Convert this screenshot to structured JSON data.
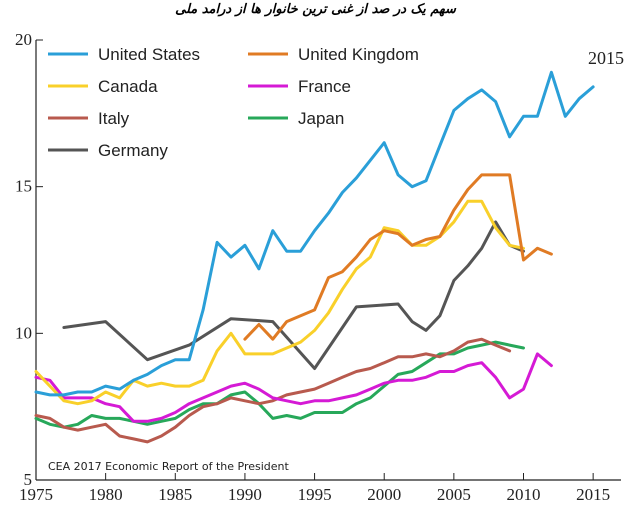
{
  "chart_data": {
    "type": "line",
    "title": "سهم یک در صد از غنی ترین خانوار ها از درامد ملی",
    "source": "CEA 2017 Economic Report of the President",
    "annotation": "2015",
    "xlabel": "",
    "ylabel": "",
    "xlim": [
      1975,
      2017
    ],
    "ylim": [
      5,
      20
    ],
    "xticks": [
      1975,
      1980,
      1985,
      1990,
      1995,
      2000,
      2005,
      2010,
      2015
    ],
    "yticks": [
      5,
      10,
      15,
      20
    ],
    "grid": false,
    "legend_position": "top-left",
    "series": [
      {
        "name": "United States",
        "color": "#2a9fd8",
        "x": [
          1975,
          1976,
          1977,
          1978,
          1979,
          1980,
          1981,
          1982,
          1983,
          1984,
          1985,
          1986,
          1987,
          1988,
          1989,
          1990,
          1991,
          1992,
          1993,
          1994,
          1995,
          1996,
          1997,
          1998,
          1999,
          2000,
          2001,
          2002,
          2003,
          2004,
          2005,
          2006,
          2007,
          2008,
          2009,
          2010,
          2011,
          2012,
          2013,
          2014,
          2015
        ],
        "y": [
          8.0,
          7.9,
          7.9,
          8.0,
          8.0,
          8.2,
          8.1,
          8.4,
          8.6,
          8.9,
          9.1,
          9.1,
          10.8,
          13.1,
          12.6,
          13.0,
          12.2,
          13.5,
          12.8,
          12.8,
          13.5,
          14.1,
          14.8,
          15.3,
          15.9,
          16.5,
          15.4,
          15.0,
          15.2,
          16.4,
          17.6,
          18.0,
          18.3,
          17.9,
          16.7,
          17.4,
          17.4,
          18.9,
          17.4,
          18.0,
          18.4
        ]
      },
      {
        "name": "United Kingdom",
        "color": "#e07b24",
        "x": [
          1990,
          1991,
          1992,
          1993,
          1994,
          1995,
          1996,
          1997,
          1998,
          1999,
          2000,
          2001,
          2002,
          2003,
          2004,
          2005,
          2006,
          2007,
          2008,
          2009,
          2010,
          2011,
          2012
        ],
        "y": [
          9.8,
          10.3,
          9.8,
          10.4,
          10.6,
          10.8,
          11.9,
          12.1,
          12.6,
          13.2,
          13.5,
          13.4,
          13.0,
          13.2,
          13.3,
          14.2,
          14.9,
          15.4,
          15.4,
          15.4,
          12.5,
          12.9,
          12.7
        ]
      },
      {
        "name": "Canada",
        "color": "#f9d02a",
        "x": [
          1975,
          1976,
          1977,
          1978,
          1979,
          1980,
          1981,
          1982,
          1983,
          1984,
          1985,
          1986,
          1987,
          1988,
          1989,
          1990,
          1991,
          1992,
          1993,
          1994,
          1995,
          1996,
          1997,
          1998,
          1999,
          2000,
          2001,
          2002,
          2003,
          2004,
          2005,
          2006,
          2007,
          2008,
          2009,
          2010
        ],
        "y": [
          8.7,
          8.2,
          7.7,
          7.6,
          7.7,
          8.0,
          7.8,
          8.4,
          8.2,
          8.3,
          8.2,
          8.2,
          8.4,
          9.4,
          10.0,
          9.3,
          9.3,
          9.3,
          9.5,
          9.7,
          10.1,
          10.7,
          11.5,
          12.2,
          12.6,
          13.6,
          13.5,
          13.0,
          13.0,
          13.3,
          13.8,
          14.5,
          14.5,
          13.6,
          13.0,
          12.9
        ]
      },
      {
        "name": "France",
        "color": "#d51ad5",
        "x": [
          1975,
          1976,
          1977,
          1978,
          1979,
          1980,
          1981,
          1982,
          1983,
          1984,
          1985,
          1986,
          1987,
          1988,
          1989,
          1990,
          1991,
          1992,
          1993,
          1994,
          1995,
          1996,
          1997,
          1998,
          1999,
          2000,
          2001,
          2002,
          2003,
          2004,
          2005,
          2006,
          2007,
          2008,
          2009,
          2010,
          2011,
          2012
        ],
        "y": [
          8.5,
          8.4,
          7.8,
          7.8,
          7.8,
          7.6,
          7.5,
          7.0,
          7.0,
          7.1,
          7.3,
          7.6,
          7.8,
          8.0,
          8.2,
          8.3,
          8.1,
          7.8,
          7.7,
          7.6,
          7.7,
          7.7,
          7.8,
          7.9,
          8.1,
          8.3,
          8.4,
          8.4,
          8.5,
          8.7,
          8.7,
          8.9,
          9.0,
          8.5,
          7.8,
          8.1,
          9.3,
          8.9
        ]
      },
      {
        "name": "Italy",
        "color": "#b85a4e",
        "x": [
          1975,
          1976,
          1977,
          1978,
          1979,
          1980,
          1981,
          1982,
          1983,
          1984,
          1985,
          1986,
          1987,
          1988,
          1989,
          1990,
          1991,
          1992,
          1993,
          1994,
          1995,
          1996,
          1997,
          1998,
          1999,
          2000,
          2001,
          2002,
          2003,
          2004,
          2005,
          2006,
          2007,
          2008,
          2009
        ],
        "y": [
          7.2,
          7.1,
          6.8,
          6.7,
          6.8,
          6.9,
          6.5,
          6.4,
          6.3,
          6.5,
          6.8,
          7.2,
          7.5,
          7.6,
          7.8,
          7.7,
          7.6,
          7.7,
          7.9,
          8.0,
          8.1,
          8.3,
          8.5,
          8.7,
          8.8,
          9.0,
          9.2,
          9.2,
          9.3,
          9.2,
          9.4,
          9.7,
          9.8,
          9.6,
          9.4
        ]
      },
      {
        "name": "Japan",
        "color": "#27a85a",
        "x": [
          1975,
          1976,
          1977,
          1978,
          1979,
          1980,
          1981,
          1982,
          1983,
          1984,
          1985,
          1986,
          1987,
          1988,
          1989,
          1990,
          1991,
          1992,
          1993,
          1994,
          1995,
          1996,
          1997,
          1998,
          1999,
          2000,
          2001,
          2002,
          2003,
          2004,
          2005,
          2006,
          2007,
          2008,
          2009,
          2010
        ],
        "y": [
          7.1,
          6.9,
          6.8,
          6.9,
          7.2,
          7.1,
          7.1,
          7.0,
          6.9,
          7.0,
          7.1,
          7.4,
          7.6,
          7.6,
          7.9,
          8.0,
          7.6,
          7.1,
          7.2,
          7.1,
          7.3,
          7.3,
          7.3,
          7.6,
          7.8,
          8.2,
          8.6,
          8.7,
          9.0,
          9.3,
          9.3,
          9.5,
          9.6,
          9.7,
          9.6,
          9.5
        ]
      },
      {
        "name": "Germany",
        "color": "#555555",
        "x": [
          1977,
          1980,
          1983,
          1986,
          1989,
          1992,
          1995,
          1998,
          2001,
          2002,
          2003,
          2004,
          2005,
          2006,
          2007,
          2008,
          2009,
          2010
        ],
        "y": [
          10.2,
          10.4,
          9.1,
          9.6,
          10.5,
          10.4,
          8.8,
          10.9,
          11.0,
          10.4,
          10.1,
          10.6,
          11.8,
          12.3,
          12.9,
          13.8,
          13.0,
          12.8
        ]
      }
    ]
  }
}
